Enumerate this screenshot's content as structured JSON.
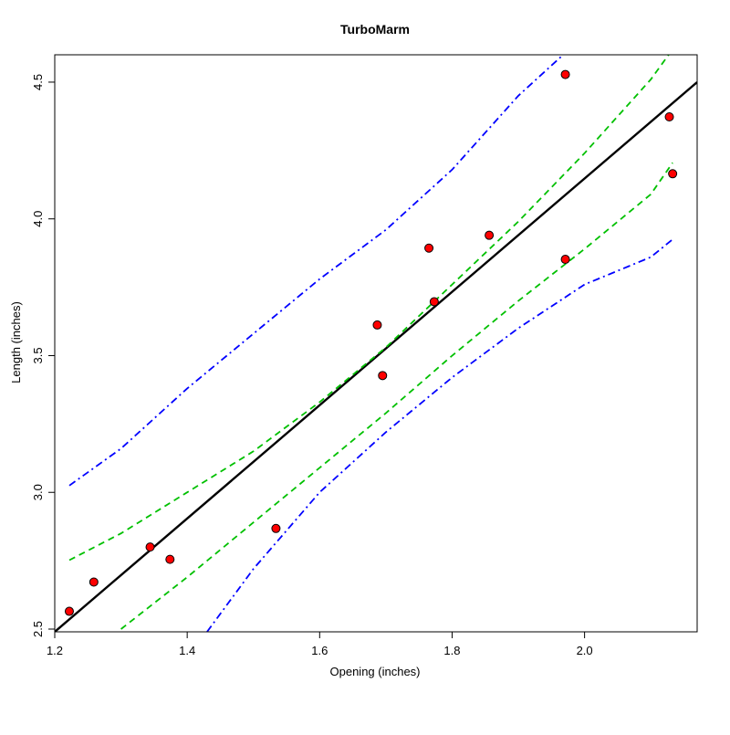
{
  "chart_data": {
    "type": "scatter",
    "title": "TurboMarm",
    "xlabel": "Opening (inches)",
    "ylabel": "Length (inches)",
    "xlim": [
      1.2,
      2.17
    ],
    "ylim": [
      2.49,
      4.6
    ],
    "xticks": [
      "1.2",
      "1.4",
      "1.6",
      "1.8",
      "2.0"
    ],
    "yticks": [
      "2.5",
      "3.0",
      "3.5",
      "4.0",
      "4.5"
    ],
    "grid": false,
    "points": [
      {
        "x": 1.222,
        "y": 2.565
      },
      {
        "x": 1.259,
        "y": 2.672
      },
      {
        "x": 1.344,
        "y": 2.8
      },
      {
        "x": 1.374,
        "y": 2.755
      },
      {
        "x": 1.534,
        "y": 2.868
      },
      {
        "x": 1.687,
        "y": 3.612
      },
      {
        "x": 1.695,
        "y": 3.427
      },
      {
        "x": 1.765,
        "y": 3.893
      },
      {
        "x": 1.773,
        "y": 3.697
      },
      {
        "x": 1.856,
        "y": 3.94
      },
      {
        "x": 1.971,
        "y": 4.528
      },
      {
        "x": 1.971,
        "y": 3.852
      },
      {
        "x": 2.128,
        "y": 4.373
      },
      {
        "x": 2.133,
        "y": 4.165
      }
    ],
    "series": [
      {
        "style": "fit",
        "color": "#000000",
        "x": [
          1.2,
          2.17
        ],
        "y": [
          2.49,
          4.5
        ]
      },
      {
        "style": "confidence-upper",
        "color": "#00c000",
        "x": [
          1.222,
          1.3,
          1.4,
          1.5,
          1.6,
          1.7,
          1.8,
          1.9,
          2.0,
          2.1,
          2.133
        ],
        "y": [
          2.752,
          2.85,
          3.0,
          3.15,
          3.33,
          3.53,
          3.76,
          3.99,
          4.24,
          4.51,
          4.62
        ]
      },
      {
        "style": "confidence-lower",
        "color": "#00c000",
        "x": [
          1.3,
          1.4,
          1.5,
          1.6,
          1.7,
          1.8,
          1.9,
          2.0,
          2.1,
          2.133
        ],
        "y": [
          2.5,
          2.69,
          2.89,
          3.09,
          3.29,
          3.5,
          3.7,
          3.89,
          4.09,
          4.205
        ]
      },
      {
        "style": "prediction-upper",
        "color": "#0000ff",
        "x": [
          1.222,
          1.3,
          1.4,
          1.5,
          1.6,
          1.7,
          1.8,
          1.9,
          1.97
        ],
        "y": [
          3.025,
          3.16,
          3.38,
          3.58,
          3.78,
          3.96,
          4.18,
          4.45,
          4.605
        ]
      },
      {
        "style": "prediction-lower",
        "color": "#0000ff",
        "x": [
          1.43,
          1.5,
          1.6,
          1.7,
          1.8,
          1.9,
          2.0,
          2.1,
          2.133
        ],
        "y": [
          2.49,
          2.72,
          3.0,
          3.22,
          3.42,
          3.6,
          3.76,
          3.86,
          3.925
        ]
      }
    ],
    "colors": {
      "point_fill": "#ff0000",
      "point_stroke": "#000000"
    }
  }
}
